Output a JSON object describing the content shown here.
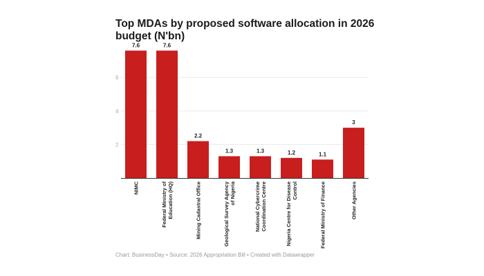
{
  "chart_data": {
    "type": "bar",
    "title": "Top MDAs by proposed software allocation in 2026 budget (N'bn)",
    "categories": [
      [
        "NIMC"
      ],
      [
        "Federal Ministry of",
        "Education (HQ)"
      ],
      [
        "Mining Cadastral Office"
      ],
      [
        "Geological Survey Agency",
        "of Nigeria"
      ],
      [
        "National Cybercrime",
        "Coordination Centre"
      ],
      [
        "Nigeria Centre for Disease",
        "Control"
      ],
      [
        "Federal Ministry of Finance"
      ],
      [
        "Other Agencies"
      ]
    ],
    "values": [
      7.6,
      7.6,
      2.2,
      1.3,
      1.3,
      1.2,
      1.1,
      3
    ],
    "value_labels": [
      "7.6",
      "7.6",
      "2.2",
      "1.3",
      "1.3",
      "1.2",
      "1.1",
      "3"
    ],
    "yticks": [
      2,
      4,
      6
    ],
    "ylim": [
      0,
      7.6
    ],
    "grid": true,
    "bar_color": "#c81e1e",
    "footer": "Chart: BusinessDay • Source: 2026 Appropriation Bill • Created with Datawrapper"
  }
}
